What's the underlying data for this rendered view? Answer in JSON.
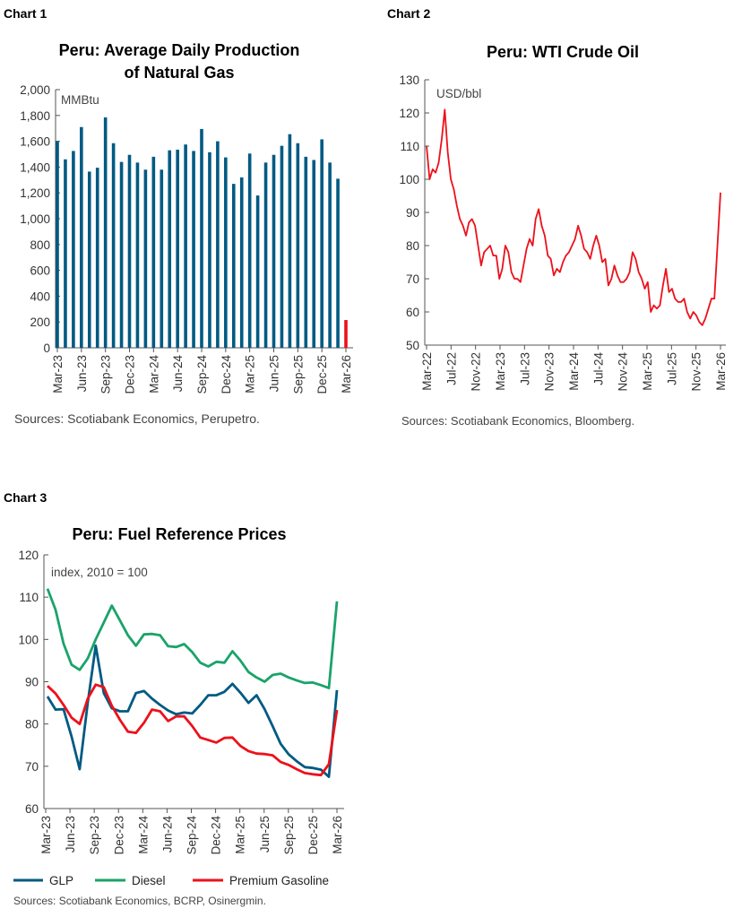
{
  "colors": {
    "blue": "#005A82",
    "red": "#EC111A",
    "green": "#1AA36A"
  },
  "chart_data": [
    {
      "label": "Chart 1",
      "type": "bar",
      "title": "Peru: Average Daily Production of Natural Gas",
      "title_lines": [
        "Peru: Average Daily Production",
        "of Natural Gas"
      ],
      "ylabel": "MMBtu",
      "ylim": [
        0,
        2000
      ],
      "yticks": [
        "0",
        "200",
        "400",
        "600",
        "800",
        "1,000",
        "1,200",
        "1,400",
        "1,600",
        "1,800",
        "2,000"
      ],
      "xtick_labels": [
        "Mar-23",
        "Jun-23",
        "Sep-23",
        "Dec-23",
        "Mar-24",
        "Jun-24",
        "Sep-24",
        "Dec-24",
        "Mar-25",
        "Jun-25",
        "Sep-25",
        "Dec-25",
        "Mar-26"
      ],
      "categories": [
        "Mar-23",
        "Apr-23",
        "May-23",
        "Jun-23",
        "Jul-23",
        "Aug-23",
        "Sep-23",
        "Oct-23",
        "Nov-23",
        "Dec-23",
        "Jan-24",
        "Feb-24",
        "Mar-24",
        "Apr-24",
        "May-24",
        "Jun-24",
        "Jul-24",
        "Aug-24",
        "Sep-24",
        "Oct-24",
        "Nov-24",
        "Dec-24",
        "Jan-25",
        "Feb-25",
        "Mar-25",
        "Apr-25",
        "May-25",
        "Jun-25",
        "Jul-25",
        "Aug-25",
        "Sep-25",
        "Oct-25",
        "Nov-25",
        "Dec-25",
        "Jan-26",
        "Feb-26",
        "Mar-26"
      ],
      "values": [
        1600,
        1460,
        1525,
        1710,
        1365,
        1395,
        1785,
        1585,
        1440,
        1495,
        1435,
        1380,
        1480,
        1380,
        1530,
        1535,
        1575,
        1525,
        1695,
        1515,
        1600,
        1475,
        1270,
        1320,
        1505,
        1180,
        1435,
        1495,
        1565,
        1655,
        1585,
        1480,
        1455,
        1615,
        1435,
        1310,
        215
      ],
      "highlight_last": true,
      "grid": false,
      "source": "Sources: Scotiabank Economics, Perupetro."
    },
    {
      "label": "Chart 2",
      "type": "line",
      "title": "Peru: WTI Crude Oil",
      "ylabel": "USD/bbl",
      "ylim": [
        50,
        130
      ],
      "yticks": [
        "50",
        "60",
        "70",
        "80",
        "90",
        "100",
        "110",
        "120",
        "130"
      ],
      "xtick_labels": [
        "Mar-22",
        "Jul-22",
        "Nov-22",
        "Mar-23",
        "Jul-23",
        "Nov-23",
        "Mar-24",
        "Jul-24",
        "Nov-24",
        "Mar-25",
        "Jul-25",
        "Nov-25",
        "Mar-26"
      ],
      "x_start": "Mar-22",
      "x_end": "Mar-26",
      "values_semimonthly": [
        110,
        100,
        103,
        102,
        105,
        112,
        121,
        108,
        100,
        97,
        92,
        88,
        86,
        83,
        87,
        88,
        86,
        80,
        74,
        78,
        79,
        80,
        77,
        77,
        70,
        73,
        80,
        78,
        72,
        70,
        70,
        69,
        74,
        79,
        82,
        80,
        88,
        91,
        86,
        83,
        77,
        76,
        71,
        73,
        72,
        75,
        77,
        78,
        80,
        82,
        86,
        83,
        79,
        78,
        76,
        80,
        83,
        80,
        75,
        76,
        68,
        70,
        74,
        71,
        69,
        69,
        70,
        72,
        78,
        76,
        72,
        70,
        67,
        69,
        60,
        62,
        61,
        62,
        68,
        73,
        66,
        67,
        64,
        63,
        63,
        64,
        60,
        58,
        60,
        59,
        57,
        56,
        58,
        61,
        64,
        64,
        80,
        96
      ],
      "grid": false,
      "source": "Sources: Scotiabank Economics, Bloomberg."
    },
    {
      "label": "Chart 3",
      "type": "line",
      "title": "Peru: Fuel Reference Prices",
      "ylabel": "index, 2010 = 100",
      "ylim": [
        60,
        120
      ],
      "yticks": [
        "60",
        "70",
        "80",
        "90",
        "100",
        "110",
        "120"
      ],
      "xtick_labels": [
        "Mar-23",
        "Jun-23",
        "Sep-23",
        "Dec-23",
        "Mar-24",
        "Jun-24",
        "Sep-24",
        "Dec-24",
        "Mar-25",
        "Jun-25",
        "Sep-25",
        "Dec-25",
        "Mar-26"
      ],
      "series": [
        {
          "name": "GLP",
          "color": "#005A82",
          "values": [
            86.5,
            83.4,
            83.5,
            77,
            69.3,
            85,
            98.5,
            87.3,
            83.7,
            83,
            83,
            87.3,
            87.8,
            86,
            84.5,
            83.2,
            82.3,
            82.7,
            82.5,
            84.5,
            86.8,
            86.8,
            87.6,
            89.5,
            87.4,
            85,
            86.8,
            83.5,
            79.5,
            75.3,
            72.8,
            71.2,
            69.8,
            69.6,
            69.2,
            67.5,
            88
          ]
        },
        {
          "name": "Diesel",
          "color": "#1AA36A",
          "values": [
            112,
            107,
            99,
            94,
            92.8,
            95.5,
            100,
            104,
            108,
            104.5,
            101,
            98.5,
            101.2,
            101.3,
            101,
            98.4,
            98.2,
            98.9,
            97,
            94.5,
            93.6,
            94.7,
            94.5,
            97.2,
            95,
            92.3,
            91,
            90,
            91.6,
            91.9,
            91,
            90.3,
            89.7,
            89.8,
            89.2,
            88.5,
            109
          ]
        },
        {
          "name": "Premium Gasoline",
          "color": "#EC111A",
          "values": [
            89,
            87.2,
            84.5,
            81.5,
            80,
            86,
            89.3,
            88.7,
            84.3,
            81,
            78.2,
            77.9,
            80.3,
            83.4,
            83,
            80.7,
            81.8,
            81.8,
            79.5,
            76.8,
            76.2,
            75.6,
            76.7,
            76.8,
            74.8,
            73.6,
            73,
            72.9,
            72.6,
            71,
            70.3,
            69.3,
            68.4,
            68.1,
            67.9,
            70.5,
            83.3
          ]
        }
      ],
      "legend_position": "bottom",
      "grid": false,
      "source": "Sources: Scotiabank Economics, BCRP, Osinergmin."
    }
  ]
}
